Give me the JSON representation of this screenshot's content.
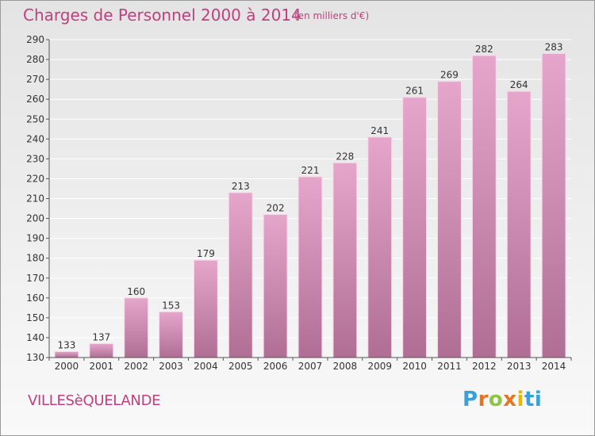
{
  "header": {
    "title": "Charges de Personnel 2000 à 2014",
    "subtitle": "(en milliers d'€)"
  },
  "footer": {
    "commune": "VILLESèQUELANDE",
    "logo": {
      "text": "Proxiti",
      "letter_colors": [
        "#3aa0dc",
        "#e8731e",
        "#8cc63f",
        "#e8731e",
        "#e6b800",
        "#3aa0dc",
        "#3aa0dc"
      ]
    }
  },
  "colors": {
    "bar_top": "#e6a6cc",
    "bar_bottom": "#b06e94",
    "title": "#c0407f"
  },
  "chart_data": {
    "type": "bar",
    "categories": [
      "2000",
      "2001",
      "2002",
      "2003",
      "2004",
      "2005",
      "2006",
      "2007",
      "2008",
      "2009",
      "2010",
      "2011",
      "2012",
      "2013",
      "2014"
    ],
    "values": [
      133,
      137,
      160,
      153,
      179,
      213,
      202,
      221,
      228,
      241,
      261,
      269,
      282,
      264,
      283
    ],
    "title": "Charges de Personnel 2000 à 2014",
    "subtitle": "(en milliers d'€)",
    "ylim": [
      130,
      290
    ],
    "yticks": [
      130,
      140,
      150,
      160,
      170,
      180,
      190,
      200,
      210,
      220,
      230,
      240,
      250,
      260,
      270,
      280,
      290
    ],
    "grid": true,
    "data_labels": true
  }
}
